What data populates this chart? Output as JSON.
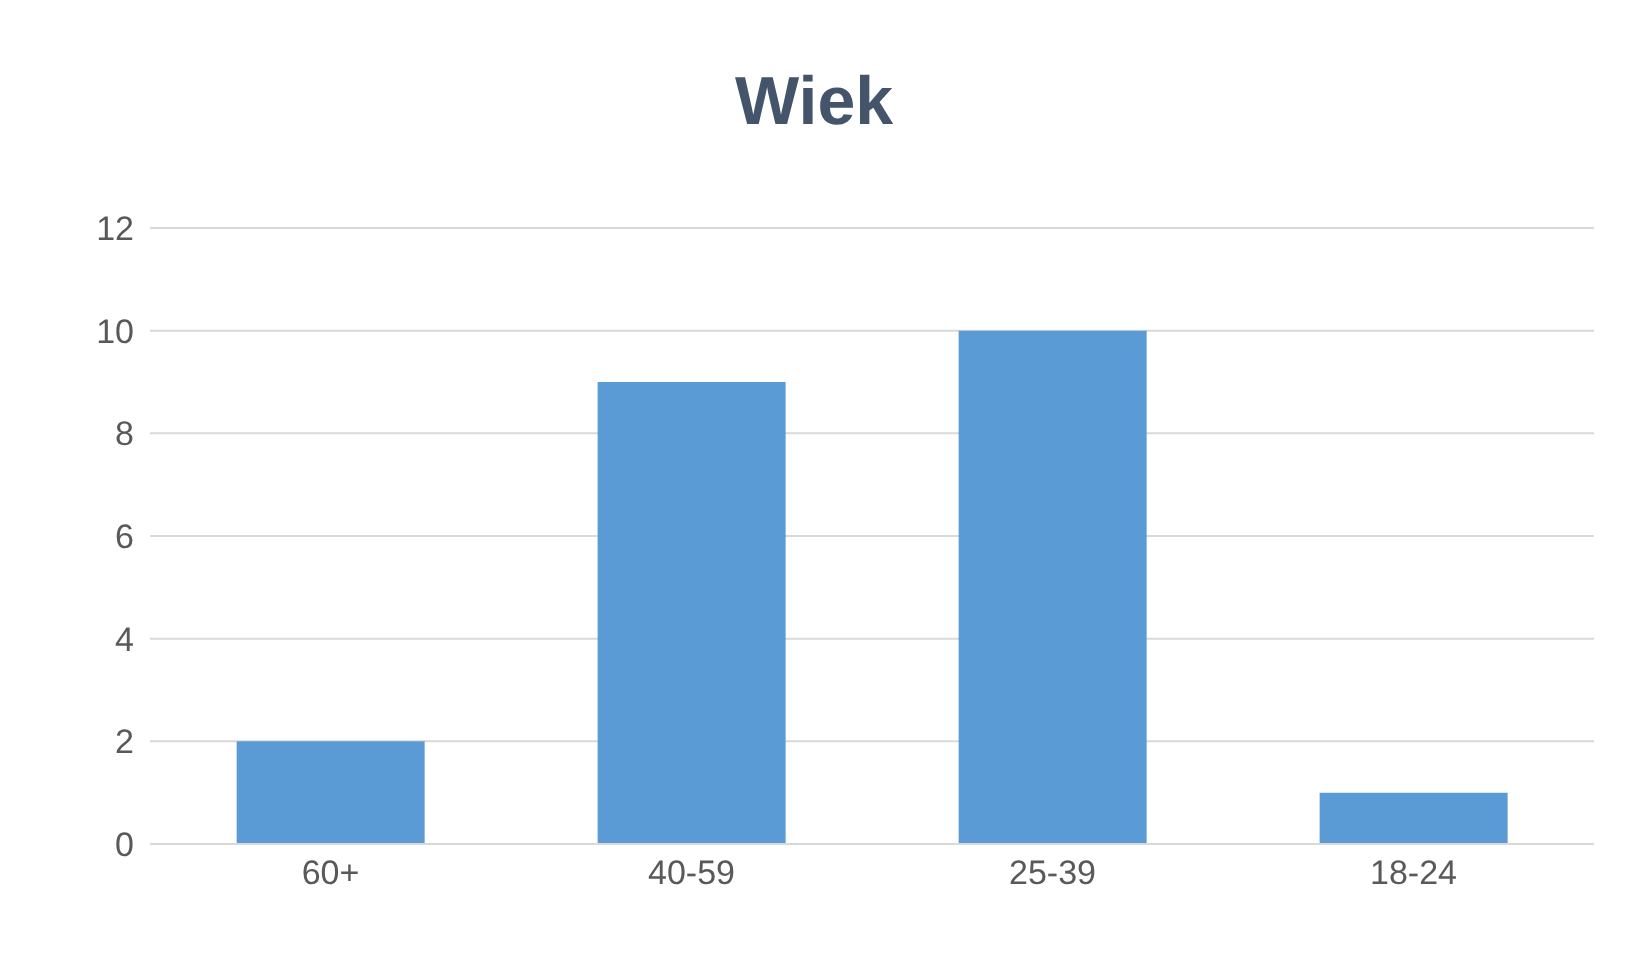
{
  "chart_data": {
    "type": "bar",
    "title": "Wiek",
    "categories": [
      "60+",
      "40-59",
      "25-39",
      "18-24"
    ],
    "values": [
      2,
      9,
      10,
      1
    ],
    "color": "#5b9bd5",
    "ylim": [
      0,
      12
    ],
    "yticks": [
      0,
      2,
      4,
      6,
      8,
      10,
      12
    ],
    "grid": "y"
  }
}
